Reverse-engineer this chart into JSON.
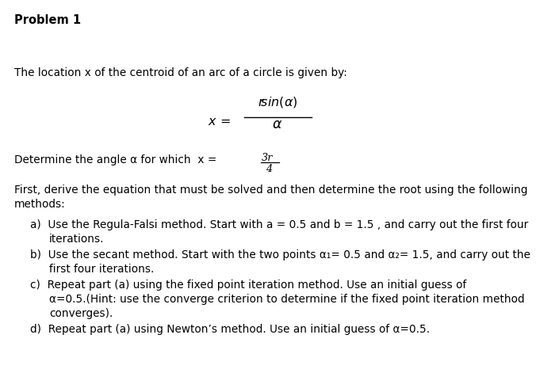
{
  "background_color": "#ffffff",
  "title": "Problem 1",
  "line1": "The location x of the centroid of an arc of a circle is given by:",
  "line2_pre": "Determine the angle α for which x =",
  "line3a": "First, derive the equation that must be solved and then determine the root using the following",
  "line3b": "methods:",
  "item_a1": "a)  Use the Regula-Falsi method. Start with a = 0.5 and b = 1.5 , and carry out the first four",
  "item_a2": "iterations.",
  "item_b1": "b)  Use the secant method. Start with the two points α₁= 0.5 and α₂= 1.5, and carry out the",
  "item_b2": "first four iterations.",
  "item_c1": "c)  Repeat part (a) using the fixed point iteration method. Use an initial guess of",
  "item_c2": "α=0.5.(Hint: use the converge criterion to determine if the fixed point iteration method",
  "item_c3": "converges).",
  "item_d1": "d)  Repeat part (a) using Newton’s method. Use an initial guess of α=0.5.",
  "fs_title": 10.5,
  "fs_body": 9.8,
  "fs_formula": 11.5
}
